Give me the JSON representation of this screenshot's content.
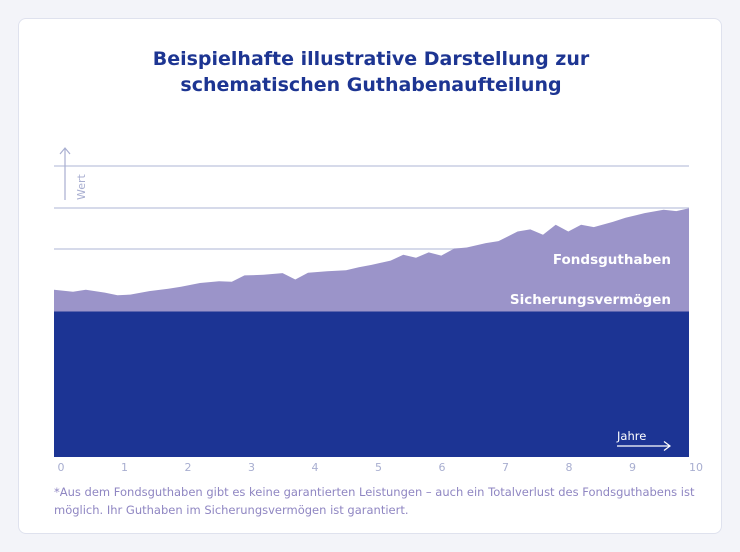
{
  "title_line1": "Beispielhafte illustrative Darstellung zur",
  "title_line2": "schematischen Guthabenaufteilung",
  "footnote": "*Aus dem Fondsguthaben gibt es keine garantierten Leistungen – auch ein Totalverlust des Fondsguthabens ist möglich. Ihr Guthaben im Sicherungsvermögen ist garantiert.",
  "colors": {
    "title": "#1d3592",
    "secure": "#1c3494",
    "fund": "#9b94c9",
    "grid": "#c9cee4",
    "axis_label": "#a8aed0",
    "footnote": "#8f86c2"
  },
  "chart_data": {
    "type": "area",
    "xlabel": "Jahre",
    "ylabel": "Wert",
    "xlim": [
      0,
      10
    ],
    "x_ticks": [
      "0",
      "1",
      "2",
      "3",
      "4",
      "5",
      "6",
      "7",
      "8",
      "9",
      "10"
    ],
    "grid": true,
    "series": [
      {
        "name": "Sicherungsvermögen",
        "x": [
          0,
          10
        ],
        "values": [
          50,
          50
        ]
      },
      {
        "name": "Fondsguthaben",
        "x": [
          0,
          0.3,
          0.5,
          0.8,
          1.0,
          1.2,
          1.5,
          1.8,
          2.0,
          2.3,
          2.6,
          2.8,
          3.0,
          3.3,
          3.6,
          3.8,
          4.0,
          4.3,
          4.6,
          4.8,
          5.0,
          5.3,
          5.5,
          5.7,
          5.9,
          6.1,
          6.3,
          6.5,
          6.8,
          7.0,
          7.3,
          7.5,
          7.7,
          7.9,
          8.1,
          8.3,
          8.5,
          8.8,
          9.0,
          9.3,
          9.6,
          9.8,
          10.0
        ],
        "values": [
          7.5,
          6.8,
          7.5,
          6.5,
          5.6,
          5.8,
          7.0,
          7.8,
          8.5,
          9.8,
          10.4,
          10.2,
          12.4,
          12.6,
          13.2,
          11.0,
          13.3,
          13.8,
          14.2,
          15.2,
          16.0,
          17.5,
          19.5,
          18.5,
          20.3,
          19.2,
          21.6,
          22.0,
          23.5,
          24.2,
          27.5,
          28.2,
          26.4,
          29.8,
          27.5,
          29.8,
          29.0,
          30.8,
          32.2,
          33.8,
          35.0,
          34.5,
          35.5
        ]
      }
    ],
    "annotations": [
      "Fondsguthaben",
      "Sicherungsvermögen"
    ]
  }
}
